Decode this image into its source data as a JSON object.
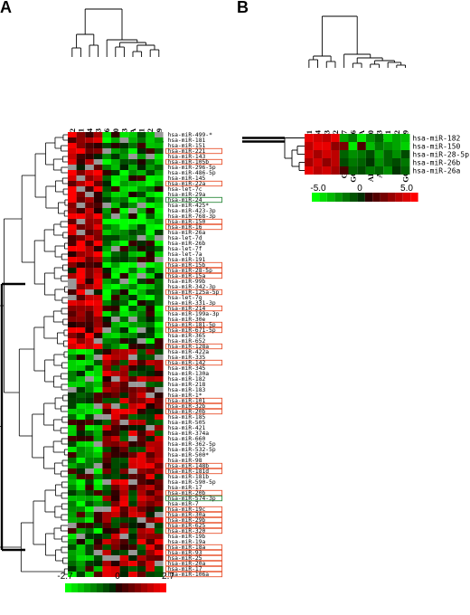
{
  "panel_a": {
    "label": "A",
    "columns": [
      "CB2",
      "CB1",
      "CB4",
      "CB3",
      "GCB-SUDHL-6",
      "GCB-Oci-Ly-10",
      "ABC-Oci-Ly-3",
      "ABC-RIVA",
      "ABC-HBL-1",
      "ABC-U2932",
      "GCB-Oci-Ly-19"
    ],
    "rows": [
      "hsa-miR-499-*",
      "hsa-miR-181",
      "hsa-miR-151",
      "hsa-miR-221",
      "hsa-miR-143",
      "hsa-miR-105b",
      "hsa-miR-296-5p",
      "hsa-miR-486-5p",
      "hsa-miR-145",
      "hsa-miR-22a",
      "hsa-let-7c",
      "hsa-miR-29a",
      "hsa-miR-24",
      "hsa-miR-425*",
      "hsa-miR-423-3p",
      "hsa-miR-768-3p",
      "hsa-miR-150",
      "hsa-miR-16",
      "hsa-miR-26a",
      "hsa-let-7d",
      "hsa-miR-26b",
      "hsa-let-7f",
      "hsa-let-7a",
      "hsa-miR-191",
      "hsa-miR-15b",
      "hsa-miR-28-5p",
      "hsa-miR-15a",
      "hsa-miR-99b",
      "hsa-miR-342-3p",
      "hsa-miR-125a-5p",
      "hsa-let-7g",
      "hsa-miR-331-3p",
      "hsa-miR-214",
      "hsa-miR-199a-3p",
      "hsa-miR-30e",
      "hsa-miR-181-5p",
      "hsa-miR-671-5p",
      "hsa-miR-365",
      "hsa-miR-652",
      "hsa-miR-128a",
      "hsa-miR-422a",
      "hsa-miR-335",
      "hsa-miR-142",
      "hsa-miR-345",
      "hsa-miR-130a",
      "hsa-miR-182",
      "hsa-miR-218",
      "hsa-miR-183",
      "hsa-miR-1*",
      "hsa-miR-101",
      "hsa-miR-32b",
      "hsa-miR-20b",
      "hsa-miR-185",
      "hsa-miR-505",
      "hsa-miR-421",
      "hsa-miR-374a",
      "hsa-miR-660",
      "hsa-miR-362-5p",
      "hsa-miR-532-5p",
      "hsa-miR-500*",
      "hsa-miR-98",
      "hsa-miR-148b",
      "hsa-miR-181d",
      "hsa-miR-181b",
      "hsa-miR-590-5p",
      "hsa-miR-17",
      "hsa-miR-20b",
      "hsa-miR-574-3p",
      "hsa-miR-7",
      "hsa-miR-19c",
      "hsa-miR-30a",
      "hsa-miR-29b",
      "hsa-miR-625",
      "hsa-miR-320",
      "hsa-miR-19b",
      "hsa-miR-19a",
      "hsa-miR-18a",
      "hsa-miR-93",
      "hsa-miR-25",
      "hsa-miR-20a",
      "hsa-miR-17",
      "hsa-miR-106a"
    ],
    "scale": {
      "min": "-2.7",
      "mid": "0",
      "max": "2.7"
    }
  },
  "panel_b": {
    "label": "B",
    "columns": [
      "CB1",
      "CB4",
      "CB3",
      "CB2",
      "GCB-Oci-Ly-7",
      "GCB-SUDHL-6",
      "ABC-RIVA",
      "ABC-Oci-Ly-10",
      "ABC-Oci-Ly-3",
      "ABC-HBL-1",
      "ABC-U2932",
      "GCB-Oci-Ly-19"
    ],
    "rows": [
      "hsa-miR-182",
      "hsa-miR-150",
      "hsa-miR-28-5p",
      "hsa-miR-26b",
      "hsa-miR-26a"
    ],
    "scale": {
      "min": "-5.0",
      "mid": "0",
      "max": "5.0"
    }
  },
  "colors": {
    "up": "#ff0000",
    "down": "#00ff00",
    "neutral": "#000000",
    "missing": "#999999",
    "box_red": "#e8532e",
    "box_green": "#2e8b3e"
  }
}
